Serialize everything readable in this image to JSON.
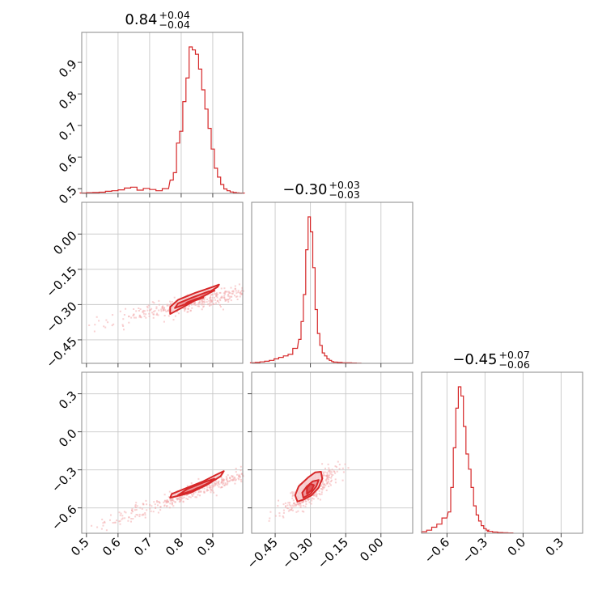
{
  "chart_data": {
    "type": "corner",
    "color": "#d62728",
    "grid": true,
    "parameters": [
      {
        "title_value": "0.84",
        "title_upper": "+0.04",
        "title_lower": "−0.04",
        "range": [
          0.485,
          0.995
        ],
        "ticks": [
          0.5,
          0.6,
          0.7,
          0.8,
          0.9
        ],
        "tick_labels": [
          "0.5",
          "0.6",
          "0.7",
          "0.8",
          "0.9"
        ],
        "hist_x": [
          0.49,
          0.51,
          0.53,
          0.55,
          0.57,
          0.59,
          0.61,
          0.63,
          0.65,
          0.67,
          0.69,
          0.71,
          0.73,
          0.75,
          0.77,
          0.78,
          0.79,
          0.8,
          0.81,
          0.82,
          0.83,
          0.84,
          0.85,
          0.86,
          0.87,
          0.88,
          0.89,
          0.9,
          0.91,
          0.92,
          0.93,
          0.94,
          0.95,
          0.96,
          0.97,
          0.98,
          0.99
        ],
        "hist_y": [
          0.003,
          0.005,
          0.006,
          0.008,
          0.014,
          0.018,
          0.024,
          0.036,
          0.042,
          0.022,
          0.034,
          0.026,
          0.018,
          0.032,
          0.09,
          0.14,
          0.34,
          0.42,
          0.62,
          0.78,
          0.99,
          0.97,
          0.94,
          0.84,
          0.7,
          0.57,
          0.44,
          0.3,
          0.17,
          0.11,
          0.06,
          0.03,
          0.018,
          0.01,
          0.006,
          0.004,
          0.002
        ]
      },
      {
        "title_value": "−0.30",
        "title_upper": "+0.03",
        "title_lower": "−0.03",
        "range": [
          -0.55,
          0.135
        ],
        "ticks": [
          -0.45,
          -0.3,
          -0.15,
          0.0
        ],
        "tick_labels": [
          "−0.45",
          "−0.30",
          "−0.15",
          "0.00"
        ],
        "hist_x": [
          -0.545,
          -0.525,
          -0.505,
          -0.485,
          -0.465,
          -0.445,
          -0.425,
          -0.405,
          -0.385,
          -0.365,
          -0.345,
          -0.335,
          -0.325,
          -0.315,
          -0.305,
          -0.295,
          -0.285,
          -0.275,
          -0.265,
          -0.255,
          -0.245,
          -0.235,
          -0.225,
          -0.215,
          -0.205,
          -0.195,
          -0.175,
          -0.155,
          -0.135,
          -0.115,
          -0.095
        ],
        "hist_y": [
          0.004,
          0.006,
          0.01,
          0.014,
          0.02,
          0.03,
          0.04,
          0.05,
          0.06,
          0.1,
          0.16,
          0.28,
          0.46,
          0.76,
          0.98,
          0.88,
          0.64,
          0.36,
          0.2,
          0.12,
          0.07,
          0.05,
          0.03,
          0.02,
          0.012,
          0.008,
          0.006,
          0.004,
          0.003,
          0.002,
          0.001
        ]
      },
      {
        "title_value": "−0.45",
        "title_upper": "+0.07",
        "title_lower": "−0.06",
        "range": [
          -0.8,
          0.47
        ],
        "ticks": [
          -0.6,
          -0.3,
          0.0,
          0.3
        ],
        "tick_labels": [
          "−0.6",
          "−0.3",
          "0.0",
          "0.3"
        ],
        "hist_x": [
          -0.78,
          -0.74,
          -0.7,
          -0.66,
          -0.62,
          -0.58,
          -0.56,
          -0.54,
          -0.52,
          -0.5,
          -0.48,
          -0.46,
          -0.44,
          -0.42,
          -0.4,
          -0.38,
          -0.36,
          -0.34,
          -0.32,
          -0.3,
          -0.28,
          -0.26,
          -0.22,
          -0.18,
          -0.14,
          -0.1
        ],
        "hist_y": [
          0.01,
          0.02,
          0.04,
          0.06,
          0.1,
          0.14,
          0.3,
          0.56,
          0.82,
          0.96,
          0.9,
          0.7,
          0.52,
          0.42,
          0.3,
          0.18,
          0.12,
          0.08,
          0.05,
          0.03,
          0.02,
          0.012,
          0.008,
          0.005,
          0.003,
          0.002
        ]
      }
    ],
    "pairs": [
      {
        "x_param": 0,
        "y_param": 1,
        "center": [
          0.845,
          -0.285
        ],
        "contours": [
          [
            [
              0.765,
              -0.34
            ],
            [
              0.8,
              -0.315
            ],
            [
              0.86,
              -0.27
            ],
            [
              0.915,
              -0.225
            ],
            [
              0.92,
              -0.215
            ],
            [
              0.9,
              -0.225
            ],
            [
              0.845,
              -0.25
            ],
            [
              0.79,
              -0.28
            ],
            [
              0.765,
              -0.31
            ]
          ],
          [
            [
              0.78,
              -0.315
            ],
            [
              0.82,
              -0.295
            ],
            [
              0.87,
              -0.265
            ],
            [
              0.905,
              -0.24
            ],
            [
              0.885,
              -0.245
            ],
            [
              0.835,
              -0.27
            ],
            [
              0.79,
              -0.295
            ]
          ],
          [
            [
              0.815,
              -0.295
            ],
            [
              0.85,
              -0.28
            ],
            [
              0.87,
              -0.27
            ],
            [
              0.85,
              -0.275
            ],
            [
              0.82,
              -0.29
            ]
          ]
        ],
        "scatter_spread": [
          0.12,
          0.035
        ],
        "scatter_slope": 0.55
      },
      {
        "x_param": 0,
        "y_param": 2,
        "center": [
          0.845,
          -0.46
        ],
        "contours": [
          [
            [
              0.765,
              -0.52
            ],
            [
              0.83,
              -0.48
            ],
            [
              0.88,
              -0.42
            ],
            [
              0.925,
              -0.35
            ],
            [
              0.935,
              -0.31
            ],
            [
              0.91,
              -0.34
            ],
            [
              0.87,
              -0.39
            ],
            [
              0.82,
              -0.44
            ],
            [
              0.77,
              -0.49
            ]
          ],
          [
            [
              0.79,
              -0.5
            ],
            [
              0.84,
              -0.46
            ],
            [
              0.89,
              -0.4
            ],
            [
              0.905,
              -0.37
            ],
            [
              0.87,
              -0.4
            ],
            [
              0.82,
              -0.45
            ]
          ],
          [
            [
              0.83,
              -0.47
            ],
            [
              0.86,
              -0.44
            ],
            [
              0.85,
              -0.445
            ]
          ]
        ],
        "scatter_spread": [
          0.14,
          0.06
        ],
        "scatter_slope": 1.6
      },
      {
        "x_param": 1,
        "y_param": 2,
        "center": [
          -0.3,
          -0.45
        ],
        "contours": [
          [
            [
              -0.355,
              -0.55
            ],
            [
              -0.33,
              -0.535
            ],
            [
              -0.295,
              -0.5
            ],
            [
              -0.265,
              -0.44
            ],
            [
              -0.25,
              -0.37
            ],
            [
              -0.255,
              -0.315
            ],
            [
              -0.28,
              -0.32
            ],
            [
              -0.31,
              -0.36
            ],
            [
              -0.35,
              -0.43
            ],
            [
              -0.365,
              -0.5
            ]
          ],
          [
            [
              -0.33,
              -0.52
            ],
            [
              -0.3,
              -0.49
            ],
            [
              -0.275,
              -0.43
            ],
            [
              -0.265,
              -0.38
            ],
            [
              -0.29,
              -0.39
            ],
            [
              -0.315,
              -0.43
            ],
            [
              -0.335,
              -0.48
            ]
          ],
          [
            [
              -0.315,
              -0.49
            ],
            [
              -0.295,
              -0.46
            ],
            [
              -0.285,
              -0.42
            ],
            [
              -0.3,
              -0.41
            ],
            [
              -0.315,
              -0.44
            ]
          ]
        ],
        "scatter_spread": [
          0.05,
          0.09
        ],
        "scatter_slope": 1.5
      }
    ]
  }
}
